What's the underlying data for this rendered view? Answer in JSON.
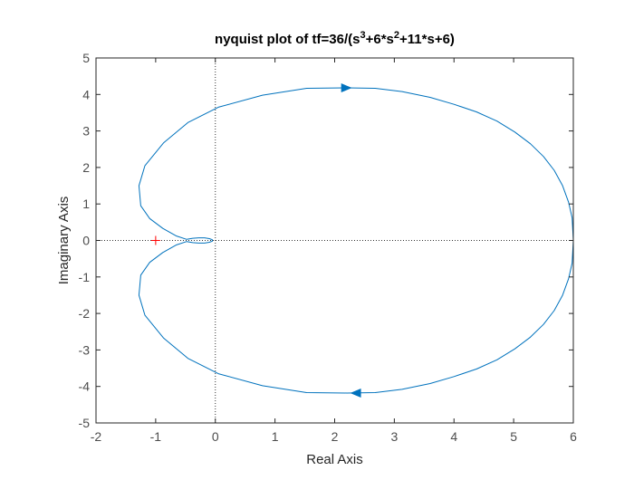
{
  "chart_data": {
    "type": "line",
    "title_main": "nyquist plot of tf=36/(s",
    "title_sup1": "3",
    "title_mid": "+6*s",
    "title_sup2": "2",
    "title_end": "+11*s+6)",
    "xlabel": "Real Axis",
    "ylabel": "Imaginary Axis",
    "xlim": [
      -2,
      6
    ],
    "ylim": [
      -5,
      5
    ],
    "xticks": [
      "-2",
      "-1",
      "0",
      "1",
      "2",
      "3",
      "4",
      "5",
      "6"
    ],
    "yticks": [
      "-5",
      "-4",
      "-3",
      "-2",
      "-1",
      "0",
      "1",
      "2",
      "3",
      "4",
      "5"
    ],
    "grid": false,
    "critical_point": {
      "x": -1,
      "y": 0,
      "marker": "+"
    },
    "reference_lines": [
      "x = 0",
      "y = 0"
    ],
    "series": [
      {
        "color": "#0072bd",
        "x": [
          6.0,
          5.98,
          5.92,
          5.82,
          5.68,
          5.5,
          5.28,
          5.02,
          4.72,
          4.38,
          4.0,
          3.6,
          3.13,
          2.68,
          2.2,
          1.53,
          0.79,
          0.05,
          -0.46,
          -0.87,
          -1.18,
          -1.28,
          -1.25,
          -1.1,
          -0.88,
          -0.65,
          -0.48,
          -0.38,
          -0.28,
          -0.18,
          -0.1,
          -0.05,
          -0.05,
          -0.1,
          -0.18,
          -0.28,
          -0.38,
          -0.48,
          -0.65,
          -0.88,
          -1.1,
          -1.25,
          -1.28,
          -1.18,
          -0.87,
          -0.46,
          0.05,
          0.79,
          1.53,
          2.2,
          2.68,
          3.13,
          3.6,
          4.0,
          4.38,
          4.72,
          5.02,
          5.28,
          5.5,
          5.68,
          5.82,
          5.92,
          5.98,
          6.0
        ],
        "y": [
          0.0,
          0.62,
          1.05,
          1.5,
          1.92,
          2.3,
          2.65,
          2.97,
          3.27,
          3.52,
          3.73,
          3.92,
          4.08,
          4.17,
          4.18,
          4.17,
          3.98,
          3.65,
          3.23,
          2.67,
          2.05,
          1.5,
          0.95,
          0.6,
          0.33,
          0.12,
          0.03,
          0.06,
          0.07,
          0.07,
          0.05,
          0.02,
          -0.02,
          -0.05,
          -0.07,
          -0.07,
          -0.06,
          -0.03,
          -0.12,
          -0.33,
          -0.6,
          -0.95,
          -1.5,
          -2.05,
          -2.67,
          -3.23,
          -3.65,
          -3.98,
          -4.17,
          -4.18,
          -4.17,
          -4.08,
          -3.92,
          -3.73,
          -3.52,
          -3.27,
          -2.97,
          -2.65,
          -2.3,
          -1.92,
          -1.5,
          -1.05,
          -0.62,
          0.0
        ]
      }
    ],
    "direction_arrows": [
      {
        "x": 2.2,
        "y": 4.18,
        "direction": "right"
      },
      {
        "x": 2.35,
        "y": -4.18,
        "direction": "left"
      }
    ]
  }
}
